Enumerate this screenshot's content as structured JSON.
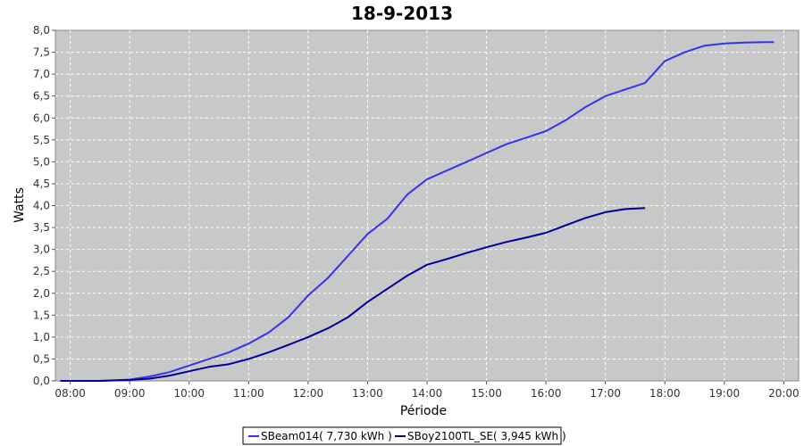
{
  "chart_data": {
    "type": "line",
    "title": "18-9-2013",
    "xlabel": "Période",
    "ylabel": "Watts",
    "xlim": [
      "07:45",
      "20:15"
    ],
    "ylim": [
      0,
      8
    ],
    "y_ticks": [
      "0,0",
      "0,5",
      "1,0",
      "1,5",
      "2,0",
      "2,5",
      "3,0",
      "3,5",
      "4,0",
      "4,5",
      "5,0",
      "5,5",
      "6,0",
      "6,5",
      "7,0",
      "7,5",
      "8,0"
    ],
    "x_ticks": [
      "08:00",
      "09:00",
      "10:00",
      "11:00",
      "12:00",
      "13:00",
      "14:00",
      "15:00",
      "16:00",
      "17:00",
      "18:00",
      "19:00",
      "20:00"
    ],
    "grid": true,
    "legend_position": "bottom",
    "background": "#c8c8c8",
    "series": [
      {
        "name": "SBeam014( 7,730 kWh )",
        "color": "#3333ee",
        "x": [
          "07:50",
          "08:30",
          "09:00",
          "09:20",
          "09:40",
          "10:00",
          "10:20",
          "10:40",
          "11:00",
          "11:20",
          "11:40",
          "12:00",
          "12:20",
          "12:40",
          "13:00",
          "13:20",
          "13:40",
          "14:00",
          "14:20",
          "14:40",
          "15:00",
          "15:20",
          "15:40",
          "16:00",
          "16:20",
          "16:40",
          "17:00",
          "17:20",
          "17:40",
          "18:00",
          "18:20",
          "18:40",
          "19:00",
          "19:20",
          "19:40",
          "19:50"
        ],
        "values": [
          0.0,
          0.0,
          0.03,
          0.1,
          0.2,
          0.35,
          0.5,
          0.65,
          0.85,
          1.1,
          1.45,
          1.95,
          2.35,
          2.85,
          3.35,
          3.7,
          4.25,
          4.6,
          4.8,
          5.0,
          5.2,
          5.4,
          5.55,
          5.7,
          5.95,
          6.25,
          6.5,
          6.65,
          6.8,
          7.3,
          7.5,
          7.65,
          7.7,
          7.72,
          7.73,
          7.73
        ]
      },
      {
        "name": "SBoy2100TL_SE( 3,945 kWh )",
        "color": "#000099",
        "x": [
          "07:50",
          "08:30",
          "09:00",
          "09:20",
          "09:40",
          "10:00",
          "10:20",
          "10:40",
          "11:00",
          "11:20",
          "11:40",
          "12:00",
          "12:20",
          "12:40",
          "13:00",
          "13:20",
          "13:40",
          "14:00",
          "14:20",
          "14:40",
          "15:00",
          "15:20",
          "15:40",
          "16:00",
          "16:20",
          "16:40",
          "17:00",
          "17:20",
          "17:40"
        ],
        "values": [
          0.0,
          0.0,
          0.02,
          0.05,
          0.12,
          0.22,
          0.32,
          0.38,
          0.5,
          0.65,
          0.82,
          1.0,
          1.2,
          1.45,
          1.8,
          2.1,
          2.4,
          2.65,
          2.78,
          2.92,
          3.05,
          3.17,
          3.27,
          3.38,
          3.55,
          3.72,
          3.85,
          3.92,
          3.945
        ]
      }
    ]
  }
}
